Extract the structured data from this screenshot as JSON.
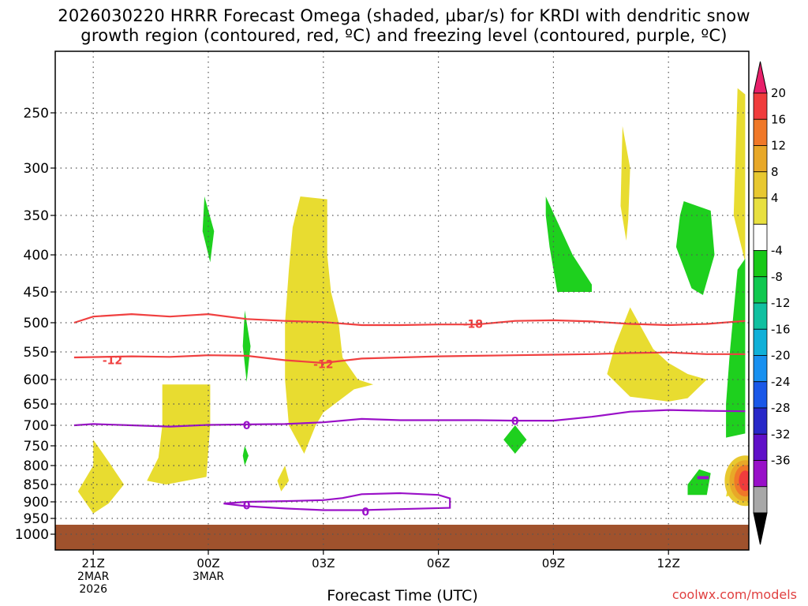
{
  "title_line1": "2026030220 HRRR Forecast Omega (shaded, µbar/s) for KRDI with dendritic snow",
  "title_line2": "growth region (contoured, red, ºC) and freezing level (contoured, purple, ºC)",
  "credit": "coolwx.com/models",
  "colors": {
    "up_yellow": "#e8dc30",
    "down_green": "#1ed01e",
    "ground": "#a0522d",
    "dgz_line": "#f04040",
    "freeze_line": "#9a10c8"
  },
  "chart_data": {
    "type": "heatmap",
    "xlabel": "Forecast Time (UTC)",
    "ylabel": "",
    "xlim_hours_from_00Z": [
      -3.5,
      14
    ],
    "ylim_hpa": [
      200,
      1025
    ],
    "y_ticks": [
      "250",
      "300",
      "350",
      "400",
      "450",
      "500",
      "550",
      "600",
      "650",
      "700",
      "750",
      "800",
      "850",
      "900",
      "950",
      "1000"
    ],
    "x_ticks": [
      {
        "h": -3,
        "lines": [
          "21Z",
          "2MAR",
          "2026"
        ]
      },
      {
        "h": 0,
        "lines": [
          "00Z",
          "3MAR"
        ]
      },
      {
        "h": 3,
        "lines": [
          "03Z"
        ]
      },
      {
        "h": 6,
        "lines": [
          "06Z"
        ]
      },
      {
        "h": 9,
        "lines": [
          "09Z"
        ]
      },
      {
        "h": 12,
        "lines": [
          "12Z"
        ]
      }
    ],
    "colorbar_labels": [
      "20",
      "16",
      "12",
      "8",
      "4",
      "-4",
      "-8",
      "-12",
      "-16",
      "-20",
      "-24",
      "-28",
      "-32",
      "-36"
    ],
    "colorbar_colors": [
      "#e8206a",
      "#f03c3c",
      "#f07828",
      "#e8a828",
      "#e8c830",
      "#e8e040",
      "#ffffff",
      "#18c818",
      "#10c850",
      "#10c0a0",
      "#10b0d8",
      "#1890f0",
      "#1a58e8",
      "#2828c8",
      "#6010c8",
      "#9810c8",
      "#a8a8a8",
      "#000000"
    ],
    "dgz_contours": [
      {
        "label": "-18",
        "label_h": 6.9,
        "label_p": 502,
        "points": [
          [
            -3.5,
            500
          ],
          [
            -3,
            490
          ],
          [
            -2,
            486
          ],
          [
            -1,
            490
          ],
          [
            0,
            486
          ],
          [
            1,
            494
          ],
          [
            2,
            497
          ],
          [
            3,
            499
          ],
          [
            4,
            504
          ],
          [
            5,
            504
          ],
          [
            6,
            503
          ],
          [
            7,
            503
          ],
          [
            8,
            497
          ],
          [
            9,
            496
          ],
          [
            10,
            498
          ],
          [
            11,
            502
          ],
          [
            12,
            504
          ],
          [
            13,
            502
          ],
          [
            14,
            497
          ]
        ]
      },
      {
        "label": "-12",
        "label_h": -2.5,
        "label_p": 565,
        "points": [
          [
            -3.5,
            560
          ],
          [
            -2,
            558
          ],
          [
            -1,
            559
          ],
          [
            0,
            556
          ],
          [
            1,
            557
          ],
          [
            2,
            565
          ],
          [
            3,
            570
          ],
          [
            4,
            562
          ],
          [
            5,
            560
          ],
          [
            6,
            558
          ],
          [
            7,
            557
          ],
          [
            8,
            556
          ],
          [
            9,
            555
          ],
          [
            10,
            554
          ],
          [
            11,
            552
          ],
          [
            12,
            551
          ],
          [
            13,
            554
          ],
          [
            14,
            554
          ]
        ]
      },
      {
        "label": "-12",
        "label_h": 3.0,
        "label_p": 572,
        "points": []
      }
    ],
    "freeze_contours": [
      {
        "label": "0",
        "label_h": 1.0,
        "label_p": 700,
        "points": [
          [
            -3.5,
            700
          ],
          [
            -3,
            697
          ],
          [
            -2,
            700
          ],
          [
            -1,
            703
          ],
          [
            0,
            699
          ],
          [
            1,
            698
          ],
          [
            2,
            697
          ],
          [
            3,
            693
          ],
          [
            4,
            685
          ],
          [
            5,
            688
          ],
          [
            6,
            688
          ],
          [
            7,
            688
          ],
          [
            8,
            689
          ],
          [
            9,
            689
          ],
          [
            10,
            680
          ],
          [
            11,
            668
          ],
          [
            12,
            664
          ],
          [
            13,
            666
          ],
          [
            14,
            667
          ]
        ]
      },
      {
        "label": "0",
        "label_h": 8.0,
        "label_p": 690,
        "points": []
      },
      {
        "label": "0",
        "label_h": 1.0,
        "label_p": 911,
        "points": [
          [
            0.4,
            905
          ],
          [
            1,
            900
          ],
          [
            2,
            898
          ],
          [
            3,
            895
          ],
          [
            3.5,
            889
          ],
          [
            4,
            878
          ],
          [
            5,
            875
          ],
          [
            6,
            880
          ],
          [
            6.3,
            890
          ],
          [
            6.3,
            918
          ],
          [
            5,
            922
          ],
          [
            4,
            925
          ],
          [
            3,
            925
          ],
          [
            2,
            920
          ],
          [
            1,
            913
          ],
          [
            0.4,
            905
          ]
        ]
      },
      {
        "label": "0",
        "label_h": 4.1,
        "label_p": 930,
        "points": []
      }
    ],
    "upward_regions_yellow": [
      [
        [
          2.4,
          330
        ],
        [
          3.1,
          333
        ],
        [
          3.1,
          400
        ],
        [
          3.2,
          450
        ],
        [
          3.4,
          500
        ],
        [
          3.5,
          560
        ],
        [
          3.9,
          600
        ],
        [
          4.3,
          610
        ],
        [
          3.8,
          620
        ],
        [
          3.0,
          670
        ],
        [
          2.8,
          700
        ],
        [
          2.5,
          770
        ],
        [
          2.1,
          700
        ],
        [
          2.0,
          600
        ],
        [
          2.0,
          500
        ],
        [
          2.1,
          420
        ],
        [
          2.2,
          365
        ]
      ],
      [
        [
          -1.2,
          610
        ],
        [
          0.05,
          610
        ],
        [
          0.05,
          700
        ],
        [
          -0.05,
          830
        ],
        [
          -1.1,
          850
        ],
        [
          -1.6,
          840
        ],
        [
          -1.3,
          780
        ],
        [
          -1.2,
          700
        ]
      ],
      [
        [
          -3.0,
          735
        ],
        [
          -2.6,
          790
        ],
        [
          -2.2,
          850
        ],
        [
          -2.6,
          905
        ],
        [
          -3.0,
          935
        ],
        [
          -3.4,
          870
        ],
        [
          -3.0,
          800
        ]
      ],
      [
        [
          2.0,
          800
        ],
        [
          2.1,
          840
        ],
        [
          1.9,
          870
        ],
        [
          1.8,
          840
        ]
      ],
      [
        [
          10.8,
          262
        ],
        [
          11.0,
          300
        ],
        [
          10.95,
          355
        ],
        [
          10.9,
          382
        ],
        [
          10.75,
          340
        ]
      ],
      [
        [
          11.0,
          475
        ],
        [
          11.6,
          545
        ],
        [
          12.0,
          570
        ],
        [
          12.5,
          590
        ],
        [
          13.0,
          600
        ],
        [
          12.5,
          638
        ],
        [
          12.0,
          645
        ],
        [
          11.0,
          635
        ],
        [
          10.4,
          590
        ],
        [
          10.6,
          540
        ]
      ],
      [
        [
          13.8,
          230
        ],
        [
          14,
          235
        ],
        [
          14,
          410
        ],
        [
          13.7,
          350
        ]
      ],
      [
        [
          13.7,
          800
        ],
        [
          14,
          795
        ],
        [
          14,
          870
        ],
        [
          13.5,
          885
        ],
        [
          13.6,
          830
        ]
      ]
    ],
    "downward_regions_green": [
      [
        [
          -0.1,
          330
        ],
        [
          0.15,
          370
        ],
        [
          0.05,
          410
        ],
        [
          -0.15,
          370
        ]
      ],
      [
        [
          0.95,
          480
        ],
        [
          1.1,
          540
        ],
        [
          1.0,
          605
        ],
        [
          0.9,
          540
        ]
      ],
      [
        [
          0.95,
          750
        ],
        [
          1.05,
          775
        ],
        [
          0.95,
          800
        ],
        [
          0.9,
          775
        ]
      ],
      [
        [
          8.8,
          330
        ],
        [
          9.5,
          400
        ],
        [
          10.0,
          440
        ],
        [
          10.0,
          450
        ],
        [
          9.1,
          450
        ],
        [
          8.9,
          390
        ],
        [
          8.8,
          350
        ]
      ],
      [
        [
          8.0,
          700
        ],
        [
          8.3,
          735
        ],
        [
          8.0,
          770
        ],
        [
          7.7,
          735
        ]
      ],
      [
        [
          12.4,
          335
        ],
        [
          13.1,
          345
        ],
        [
          13.2,
          400
        ],
        [
          12.9,
          455
        ],
        [
          12.6,
          445
        ],
        [
          12.2,
          390
        ],
        [
          12.3,
          350
        ]
      ],
      [
        [
          13.8,
          420
        ],
        [
          14,
          405
        ],
        [
          14,
          720
        ],
        [
          13.5,
          730
        ],
        [
          13.5,
          650
        ],
        [
          13.6,
          550
        ]
      ],
      [
        [
          12.8,
          810
        ],
        [
          13.1,
          820
        ],
        [
          13.0,
          880
        ],
        [
          12.5,
          880
        ],
        [
          12.5,
          850
        ]
      ]
    ],
    "strong_upward_cell": {
      "center_h": 14,
      "center_p": 840
    }
  }
}
